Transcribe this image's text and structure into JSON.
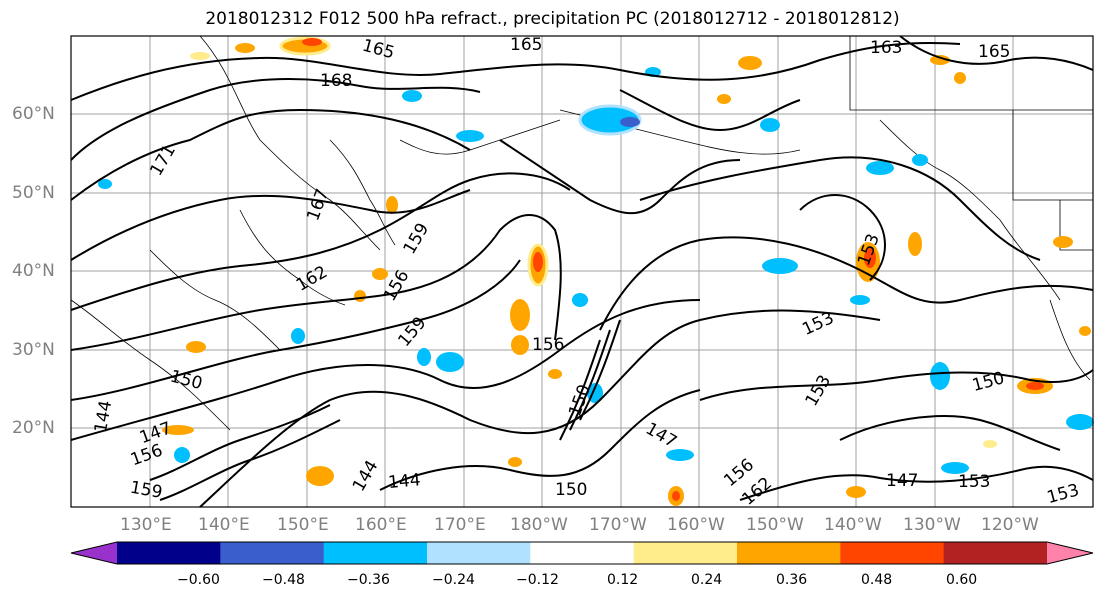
{
  "title": "2018012312 F012 500 hPa refract., precipitation PC (2018012712 - 2018012812)",
  "lat_labels": [
    "60°N",
    "50°N",
    "40°N",
    "30°N",
    "20°N"
  ],
  "lon_labels": [
    "130°E",
    "140°E",
    "150°E",
    "160°E",
    "170°E",
    "180°W",
    "170°W",
    "160°W",
    "150°W",
    "140°W",
    "130°W",
    "120°W"
  ],
  "contour_labels": [
    "165",
    "168",
    "171",
    "165",
    "163",
    "167",
    "165",
    "162",
    "159",
    "156",
    "159",
    "156",
    "150",
    "147",
    "144",
    "153",
    "150",
    "153",
    "153",
    "150",
    "147",
    "153",
    "153",
    "150",
    "147",
    "144",
    "159",
    "156",
    "162",
    "156",
    "150",
    "147",
    "159",
    "144"
  ],
  "colorbar": {
    "ticks": [
      "−0.60",
      "−0.48",
      "−0.36",
      "−0.24",
      "−0.12",
      "0.12",
      "0.24",
      "0.36",
      "0.48",
      "0.60"
    ],
    "colors": [
      "#9932CC",
      "#00008B",
      "#3A5FCD",
      "#00BFFF",
      "#B0E2FF",
      "#FFFFFF",
      "#FFEC8B",
      "#FFA500",
      "#FF4500",
      "#B22222",
      "#FF82AB"
    ]
  }
}
